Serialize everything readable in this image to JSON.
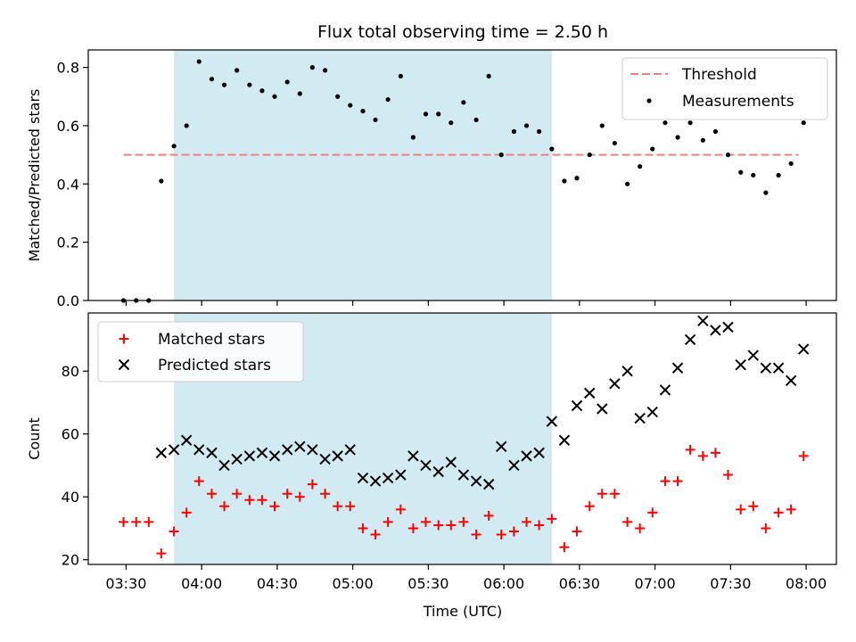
{
  "chart_data": {
    "type": "scatter",
    "title": "Flux total observing time = 2.50 h",
    "xlabel": "Time (UTC)",
    "x_unit": "minutes after 00:00 UTC",
    "xlim": [
      3.25,
      8.2
    ],
    "xticks": [
      {
        "value": 3.5,
        "label": "03:30"
      },
      {
        "value": 4.0,
        "label": "04:00"
      },
      {
        "value": 4.5,
        "label": "04:30"
      },
      {
        "value": 5.0,
        "label": "05:00"
      },
      {
        "value": 5.5,
        "label": "05:30"
      },
      {
        "value": 6.0,
        "label": "06:00"
      },
      {
        "value": 6.5,
        "label": "06:30"
      },
      {
        "value": 7.0,
        "label": "07:00"
      },
      {
        "value": 7.5,
        "label": "07:30"
      },
      {
        "value": 8.0,
        "label": "08:00"
      }
    ],
    "shaded_region": {
      "x0": 3.817,
      "x1": 6.317,
      "color": "#add8e6"
    },
    "panels": [
      {
        "id": "top",
        "ylabel": "Matched/Predicted stars",
        "ylim": [
          0,
          0.86
        ],
        "yticks": [
          0.0,
          0.2,
          0.4,
          0.6,
          0.8
        ],
        "threshold": {
          "name": "Threshold",
          "y": 0.5,
          "x0": 3.483,
          "x1": 7.95,
          "color": "#f08080"
        },
        "series": [
          {
            "name": "Measurements",
            "marker": "dot",
            "color": "#000000",
            "x": [
              3.483,
              3.567,
              3.65,
              3.733,
              3.817,
              3.9,
              3.983,
              4.067,
              4.15,
              4.233,
              4.317,
              4.4,
              4.483,
              4.567,
              4.65,
              4.733,
              4.817,
              4.9,
              4.983,
              5.067,
              5.15,
              5.233,
              5.317,
              5.4,
              5.483,
              5.567,
              5.65,
              5.733,
              5.817,
              5.9,
              5.983,
              6.067,
              6.15,
              6.233,
              6.317,
              6.4,
              6.483,
              6.567,
              6.65,
              6.733,
              6.817,
              6.9,
              6.983,
              7.067,
              7.15,
              7.233,
              7.317,
              7.4,
              7.483,
              7.567,
              7.65,
              7.733,
              7.817,
              7.9,
              7.983
            ],
            "y": [
              0.0,
              0.0,
              0.0,
              0.41,
              0.53,
              0.6,
              0.82,
              0.76,
              0.74,
              0.79,
              0.74,
              0.72,
              0.7,
              0.75,
              0.71,
              0.8,
              0.79,
              0.7,
              0.67,
              0.65,
              0.62,
              0.69,
              0.77,
              0.56,
              0.64,
              0.64,
              0.61,
              0.68,
              0.62,
              0.77,
              0.5,
              0.58,
              0.6,
              0.58,
              0.52,
              0.41,
              0.42,
              0.5,
              0.6,
              0.54,
              0.4,
              0.46,
              0.52,
              0.61,
              0.56,
              0.61,
              0.55,
              0.58,
              0.5,
              0.44,
              0.43,
              0.37,
              0.43,
              0.47,
              0.61
            ]
          }
        ]
      },
      {
        "id": "bottom",
        "ylabel": "Count",
        "ylim": [
          18.5,
          98.5
        ],
        "yticks": [
          20,
          40,
          60,
          80
        ],
        "series": [
          {
            "name": "Matched stars",
            "marker": "plus",
            "color": "#ff0000",
            "x": [
              3.483,
              3.567,
              3.65,
              3.733,
              3.817,
              3.9,
              3.983,
              4.067,
              4.15,
              4.233,
              4.317,
              4.4,
              4.483,
              4.567,
              4.65,
              4.733,
              4.817,
              4.9,
              4.983,
              5.067,
              5.15,
              5.233,
              5.317,
              5.4,
              5.483,
              5.567,
              5.65,
              5.733,
              5.817,
              5.9,
              5.983,
              6.067,
              6.15,
              6.233,
              6.317,
              6.4,
              6.483,
              6.567,
              6.65,
              6.733,
              6.817,
              6.9,
              6.983,
              7.067,
              7.15,
              7.233,
              7.317,
              7.4,
              7.483,
              7.567,
              7.65,
              7.733,
              7.817,
              7.9,
              7.983
            ],
            "y": [
              32,
              32,
              32,
              22,
              29,
              35,
              45,
              41,
              37,
              41,
              39,
              39,
              37,
              41,
              40,
              44,
              41,
              37,
              37,
              30,
              28,
              32,
              36,
              30,
              32,
              31,
              31,
              32,
              28,
              34,
              28,
              29,
              32,
              31,
              33,
              24,
              29,
              37,
              41,
              41,
              32,
              30,
              35,
              45,
              45,
              55,
              53,
              54,
              47,
              36,
              37,
              30,
              35,
              36,
              53
            ]
          },
          {
            "name": "Predicted stars",
            "marker": "x",
            "color": "#000000",
            "x": [
              3.733,
              3.817,
              3.9,
              3.983,
              4.067,
              4.15,
              4.233,
              4.317,
              4.4,
              4.483,
              4.567,
              4.65,
              4.733,
              4.817,
              4.9,
              4.983,
              5.067,
              5.15,
              5.233,
              5.317,
              5.4,
              5.483,
              5.567,
              5.65,
              5.733,
              5.817,
              5.9,
              5.983,
              6.067,
              6.15,
              6.233,
              6.317,
              6.4,
              6.483,
              6.567,
              6.65,
              6.733,
              6.817,
              6.9,
              6.983,
              7.067,
              7.15,
              7.233,
              7.317,
              7.4,
              7.483,
              7.567,
              7.65,
              7.733,
              7.817,
              7.9,
              7.983
            ],
            "y": [
              54,
              55,
              58,
              55,
              54,
              50,
              52,
              53,
              54,
              53,
              55,
              56,
              55,
              52,
              53,
              55,
              46,
              45,
              46,
              47,
              53,
              50,
              48,
              51,
              47,
              45,
              44,
              56,
              50,
              53,
              54,
              64,
              58,
              69,
              73,
              68,
              76,
              80,
              65,
              67,
              74,
              81,
              90,
              96,
              93,
              94,
              82,
              85,
              81,
              81,
              77,
              87
            ]
          }
        ]
      }
    ]
  }
}
